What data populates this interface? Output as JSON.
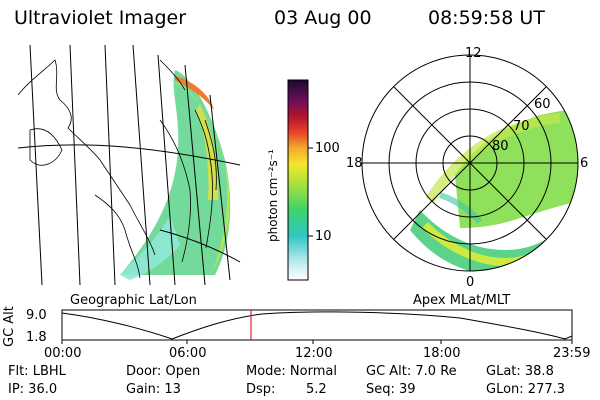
{
  "header": {
    "title": "Ultraviolet Imager",
    "date": "03 Aug 00",
    "time": "08:59:58 UT"
  },
  "maps": {
    "left_label": "Geographic Lat/Lon",
    "right_label": "Apex MLat/MLT"
  },
  "colorbar": {
    "unit_label": "photon cm⁻²s⁻¹",
    "ticks": [
      "100",
      "10"
    ]
  },
  "polar": {
    "mlt_labels": [
      "12",
      "18",
      "6",
      "0"
    ],
    "lat_labels": [
      "60",
      "70",
      "80"
    ]
  },
  "timeline": {
    "axis_label": "GC Alt",
    "y_ticks": [
      "9.0",
      "1.8"
    ],
    "x_ticks": [
      "00:00",
      "06:00",
      "12:00",
      "18:00",
      "23:59"
    ]
  },
  "footer": {
    "filter": "Flt: LBHL",
    "ip": "IP: 36.0",
    "door": "Door: Open",
    "gain": "Gain: 13",
    "mode": "Mode: Normal",
    "dsp_label": "Dsp:",
    "dsp_value": "5.2",
    "gc_alt": "GC Alt: 7.0 Re",
    "seq": "Seq: 39",
    "glat": "GLat: 38.8",
    "glon": "GLon: 277.3"
  }
}
